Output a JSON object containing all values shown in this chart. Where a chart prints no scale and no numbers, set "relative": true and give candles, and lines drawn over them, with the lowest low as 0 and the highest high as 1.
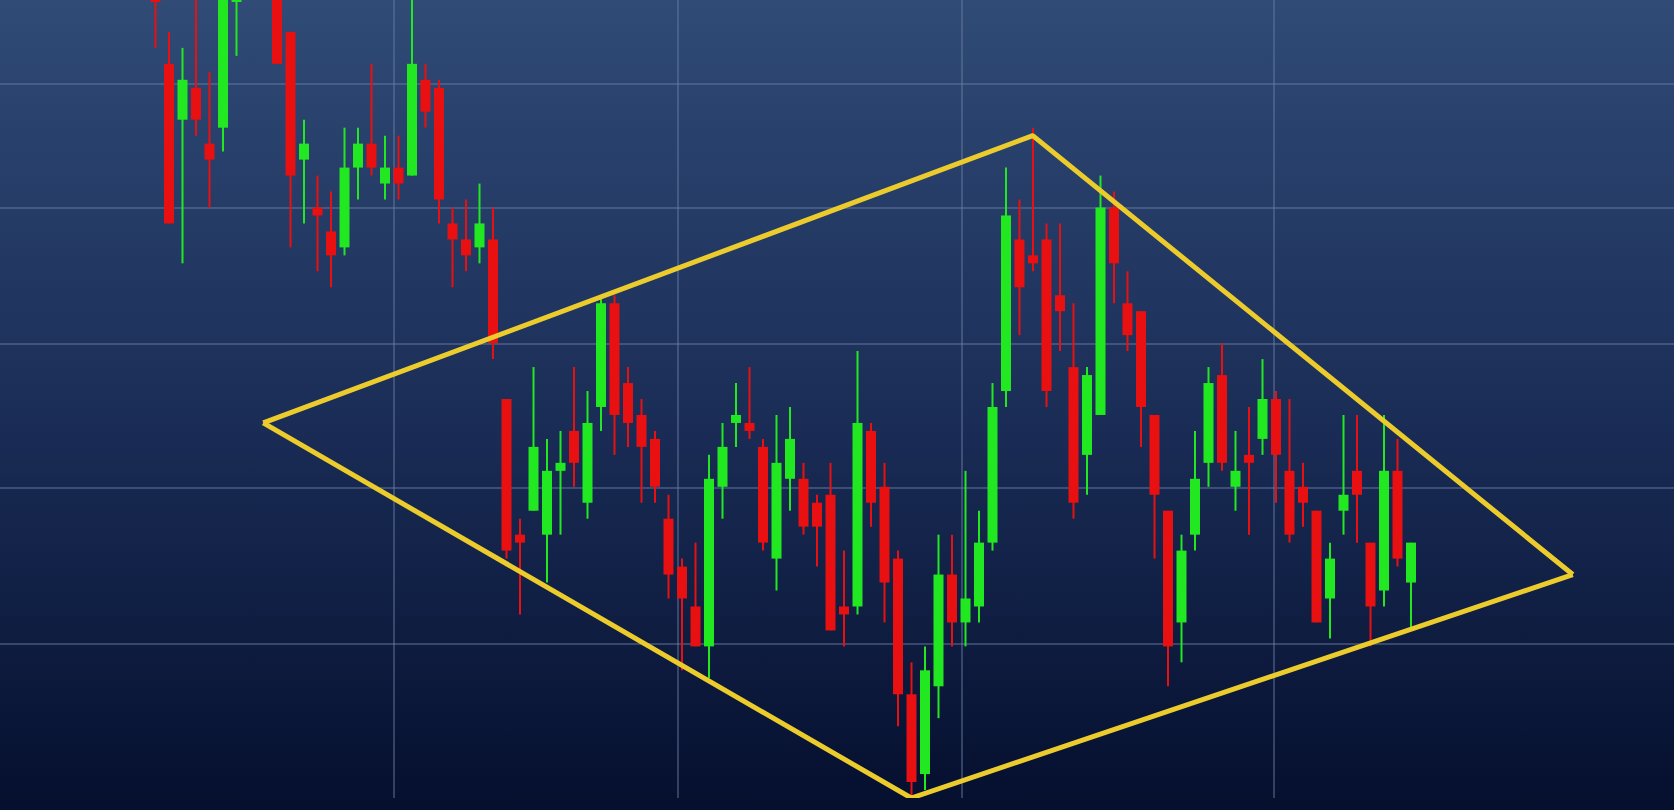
{
  "chart_data": {
    "type": "candlestick",
    "relative": true,
    "grid": true,
    "categories": [
      null,
      null,
      null,
      null,
      null,
      null,
      null,
      null,
      null,
      null,
      null,
      null,
      null,
      null,
      null,
      null,
      null,
      null,
      null,
      null,
      null,
      null,
      null,
      null,
      null,
      null,
      null,
      null,
      null,
      null,
      null,
      null,
      null,
      null,
      null,
      null,
      null,
      null,
      null,
      null,
      null,
      null,
      null,
      null,
      null,
      null,
      null,
      null,
      null,
      null,
      null,
      null,
      null,
      null,
      null,
      null,
      null,
      null,
      null,
      null,
      null,
      null,
      null,
      null,
      null,
      null,
      null,
      null,
      null,
      null,
      null,
      null,
      null,
      null,
      null,
      null,
      null,
      null,
      null,
      null,
      null,
      null,
      null,
      null,
      null,
      null,
      null,
      null,
      null,
      null,
      null,
      null,
      null,
      null,
      null,
      null,
      null,
      null,
      null,
      null,
      null,
      null,
      null,
      null,
      null,
      null,
      null,
      null,
      null,
      null,
      null,
      null,
      null,
      null,
      null,
      null,
      null,
      null,
      null,
      null,
      null,
      null,
      null,
      null
    ],
    "ohlc": [
      null,
      null,
      null,
      null,
      null,
      null,
      null,
      null,
      null,
      null,
      null,
      [
        1,
        1,
        0.94,
        1
      ],
      [
        0.92,
        0.96,
        0.72,
        0.72
      ],
      [
        0.85,
        0.94,
        0.67,
        0.9
      ],
      [
        0.89,
        1,
        0.83,
        0.85
      ],
      [
        0.82,
        0.91,
        0.74,
        0.8
      ],
      [
        0.84,
        1,
        0.81,
        1
      ],
      [
        1,
        1,
        0.93,
        1
      ],
      null,
      null,
      [
        1,
        1,
        0.92,
        0.92
      ],
      [
        0.96,
        0.96,
        0.69,
        0.78
      ],
      [
        0.8,
        0.85,
        0.72,
        0.82
      ],
      [
        0.74,
        0.78,
        0.66,
        0.73
      ],
      [
        0.71,
        0.76,
        0.64,
        0.68
      ],
      [
        0.69,
        0.84,
        0.68,
        0.79
      ],
      [
        0.79,
        0.84,
        0.75,
        0.82
      ],
      [
        0.82,
        0.92,
        0.78,
        0.79
      ],
      [
        0.77,
        0.83,
        0.75,
        0.79
      ],
      [
        0.79,
        0.83,
        0.75,
        0.77
      ],
      [
        0.78,
        1,
        0.78,
        0.92
      ],
      [
        0.9,
        0.92,
        0.84,
        0.86
      ],
      [
        0.89,
        0.9,
        0.72,
        0.75
      ],
      [
        0.72,
        0.74,
        0.64,
        0.7
      ],
      [
        0.7,
        0.75,
        0.66,
        0.68
      ],
      [
        0.69,
        0.77,
        0.67,
        0.72
      ],
      [
        0.7,
        0.74,
        0.55,
        0.57
      ],
      [
        0.5,
        0.5,
        0.3,
        0.31
      ],
      [
        0.33,
        0.35,
        0.23,
        0.32
      ],
      [
        0.36,
        0.54,
        0.36,
        0.44
      ],
      [
        0.33,
        0.45,
        0.27,
        0.41
      ],
      [
        0.41,
        0.46,
        0.33,
        0.42
      ],
      [
        0.46,
        0.54,
        0.39,
        0.42
      ],
      [
        0.37,
        0.51,
        0.35,
        0.47
      ],
      [
        0.49,
        0.63,
        0.46,
        0.62
      ],
      [
        0.62,
        0.63,
        0.43,
        0.48
      ],
      [
        0.52,
        0.54,
        0.44,
        0.47
      ],
      [
        0.48,
        0.5,
        0.37,
        0.44
      ],
      [
        0.45,
        0.46,
        0.37,
        0.39
      ],
      [
        0.35,
        0.38,
        0.25,
        0.28
      ],
      [
        0.29,
        0.3,
        0.16,
        0.25
      ],
      [
        0.24,
        0.32,
        0.19,
        0.19
      ],
      [
        0.19,
        0.43,
        0.15,
        0.4
      ],
      [
        0.39,
        0.47,
        0.35,
        0.44
      ],
      [
        0.47,
        0.52,
        0.44,
        0.48
      ],
      [
        0.47,
        0.54,
        0.45,
        0.46
      ],
      [
        0.44,
        0.45,
        0.31,
        0.32
      ],
      [
        0.3,
        0.48,
        0.26,
        0.42
      ],
      [
        0.4,
        0.49,
        0.36,
        0.45
      ],
      [
        0.4,
        0.42,
        0.33,
        0.34
      ],
      [
        0.37,
        0.38,
        0.29,
        0.34
      ],
      [
        0.38,
        0.42,
        0.21,
        0.21
      ],
      [
        0.24,
        0.31,
        0.19,
        0.23
      ],
      [
        0.24,
        0.56,
        0.23,
        0.47
      ],
      [
        0.46,
        0.47,
        0.34,
        0.37
      ],
      [
        0.39,
        0.42,
        0.22,
        0.27
      ],
      [
        0.3,
        0.31,
        0.09,
        0.13
      ],
      [
        0.13,
        0.17,
        0,
        0.02
      ],
      [
        0.03,
        0.19,
        0.01,
        0.16
      ],
      [
        0.14,
        0.33,
        0.1,
        0.28
      ],
      [
        0.28,
        0.33,
        0.19,
        0.22
      ],
      [
        0.22,
        0.41,
        0.19,
        0.25
      ],
      [
        0.24,
        0.36,
        0.22,
        0.32
      ],
      [
        0.32,
        0.52,
        0.31,
        0.49
      ],
      [
        0.51,
        0.79,
        0.49,
        0.73
      ],
      [
        0.7,
        0.75,
        0.58,
        0.64
      ],
      [
        0.68,
        0.84,
        0.66,
        0.67
      ],
      [
        0.7,
        0.72,
        0.49,
        0.51
      ],
      [
        0.63,
        0.72,
        0.56,
        0.61
      ],
      [
        0.54,
        0.62,
        0.35,
        0.37
      ],
      [
        0.43,
        0.54,
        0.38,
        0.53
      ],
      [
        0.48,
        0.78,
        0.48,
        0.74
      ],
      [
        0.74,
        0.76,
        0.62,
        0.67
      ],
      [
        0.62,
        0.66,
        0.56,
        0.58
      ],
      [
        0.61,
        0.61,
        0.44,
        0.49
      ],
      [
        0.48,
        0.48,
        0.3,
        0.38
      ],
      [
        0.36,
        0.36,
        0.14,
        0.19
      ],
      [
        0.22,
        0.33,
        0.17,
        0.31
      ],
      [
        0.33,
        0.46,
        0.31,
        0.4
      ],
      [
        0.42,
        0.54,
        0.39,
        0.52
      ],
      [
        0.53,
        0.57,
        0.41,
        0.42
      ],
      [
        0.39,
        0.46,
        0.36,
        0.41
      ],
      [
        0.43,
        0.49,
        0.33,
        0.42
      ],
      [
        0.45,
        0.55,
        0.43,
        0.5
      ],
      [
        0.5,
        0.51,
        0.37,
        0.43
      ],
      [
        0.41,
        0.5,
        0.32,
        0.33
      ],
      [
        0.39,
        0.42,
        0.34,
        0.37
      ],
      [
        0.36,
        0.36,
        0.22,
        0.22
      ],
      [
        0.25,
        0.32,
        0.2,
        0.3
      ],
      [
        0.36,
        0.48,
        0.33,
        0.38
      ],
      [
        0.41,
        0.48,
        0.32,
        0.38
      ],
      [
        0.32,
        0.32,
        0.19,
        0.24
      ],
      [
        0.26,
        0.48,
        0.24,
        0.41
      ],
      [
        0.41,
        0.45,
        0.29,
        0.3
      ],
      [
        0.27,
        0.32,
        0.21,
        0.32
      ],
      null,
      null,
      null,
      null,
      null,
      null,
      null,
      null,
      null,
      null,
      null,
      null,
      null,
      null,
      null,
      null,
      null,
      null,
      null
    ],
    "colors": [
      null,
      null,
      null,
      null,
      null,
      null,
      null,
      null,
      null,
      null,
      null,
      "#e81010",
      "#e81010",
      "#22e822",
      "#e81010",
      "#e81010",
      "#22e822",
      "#22e822",
      null,
      null,
      "#e81010",
      "#e81010",
      "#22e822",
      "#e81010",
      "#e81010",
      "#22e822",
      "#22e822",
      "#e81010",
      "#22e822",
      "#e81010",
      "#22e822",
      "#e81010",
      "#e81010",
      "#e81010",
      "#e81010",
      "#22e822",
      "#e81010",
      "#e81010",
      "#e81010",
      "#22e822",
      "#22e822",
      "#22e822",
      "#e81010",
      "#22e822",
      "#22e822",
      "#e81010",
      "#e81010",
      "#e81010",
      "#e81010",
      "#e81010",
      "#e81010",
      "#e81010",
      "#22e822",
      "#22e822",
      "#22e822",
      "#e81010",
      "#e81010",
      "#22e822",
      "#22e822",
      "#e81010",
      "#e81010",
      "#e81010",
      "#e81010",
      "#22e822",
      "#e81010",
      "#e81010",
      "#e81010",
      "#e81010",
      "#22e822",
      "#22e822",
      "#e81010",
      "#22e822",
      "#22e822",
      "#22e822",
      "#22e822",
      "#e81010",
      "#e81010",
      "#e81010",
      "#e81010",
      "#e81010",
      "#22e822",
      "#22e822",
      "#e81010",
      "#e81010",
      "#e81010",
      "#e81010",
      "#e81010",
      "#22e822",
      "#22e822",
      "#22e822",
      "#e81010",
      "#22e822",
      "#e81010",
      "#22e822",
      "#e81010",
      "#e81010",
      "#e81010",
      "#e81010",
      "#22e822",
      "#22e822",
      "#e81010",
      "#e81010",
      "#22e822",
      "#e81010",
      "#22e822",
      null,
      null,
      null,
      null,
      null,
      null,
      null,
      null,
      null,
      null,
      null,
      null,
      null,
      null,
      null,
      null,
      null,
      null,
      null
    ],
    "series": [
      {
        "type": "line",
        "color": "#eccc2c",
        "values": [
          null,
          null,
          null,
          null,
          null,
          null,
          null,
          null,
          null,
          null,
          null,
          null,
          null,
          null,
          null,
          null,
          null,
          null,
          null,
          0.47,
          null,
          null,
          null,
          null,
          null,
          null,
          null,
          null,
          null,
          null,
          null,
          null,
          null,
          null,
          null,
          null,
          null,
          null,
          null,
          null,
          null,
          null,
          null,
          null,
          null,
          null,
          null,
          null,
          null,
          null,
          null,
          null,
          null,
          null,
          null,
          null,
          null,
          null,
          null,
          null,
          null,
          null,
          null,
          null,
          null,
          null,
          null,
          null,
          null,
          null,
          null,
          null,
          null,
          null,
          null,
          null,
          0.83,
          null,
          null,
          null,
          null,
          null,
          null,
          null,
          null,
          null,
          null,
          null,
          null,
          null,
          null,
          null,
          null,
          null,
          null,
          null,
          null,
          null,
          null,
          null,
          null,
          null,
          null,
          null,
          null,
          null,
          null,
          null,
          null,
          null,
          null,
          null,
          null,
          null,
          null,
          null,
          0.28,
          null,
          null,
          null,
          null,
          null,
          null,
          null
        ]
      },
      {
        "type": "line",
        "color": "#eccc2c",
        "values": [
          null,
          null,
          null,
          null,
          null,
          null,
          null,
          null,
          null,
          null,
          null,
          null,
          null,
          null,
          null,
          null,
          null,
          null,
          null,
          0.47,
          null,
          null,
          null,
          null,
          null,
          null,
          null,
          null,
          null,
          null,
          null,
          null,
          null,
          null,
          null,
          null,
          null,
          null,
          null,
          null,
          null,
          null,
          null,
          null,
          null,
          null,
          null,
          null,
          null,
          null,
          null,
          null,
          null,
          null,
          null,
          null,
          null,
          null,
          null,
          null,
          null,
          null,
          null,
          null,
          null,
          null,
          null,
          0,
          null,
          null,
          null,
          null,
          null,
          null,
          null,
          null,
          null,
          null,
          null,
          null,
          null,
          null,
          null,
          null,
          null,
          null,
          null,
          null,
          null,
          null,
          null,
          null,
          null,
          null,
          null,
          null,
          null,
          null,
          null,
          null,
          null,
          null,
          null,
          null,
          null,
          null,
          null,
          null,
          null,
          null,
          null,
          null,
          null,
          null,
          null,
          null,
          0.28,
          null,
          null,
          null,
          null,
          null,
          null,
          null
        ]
      }
    ]
  }
}
